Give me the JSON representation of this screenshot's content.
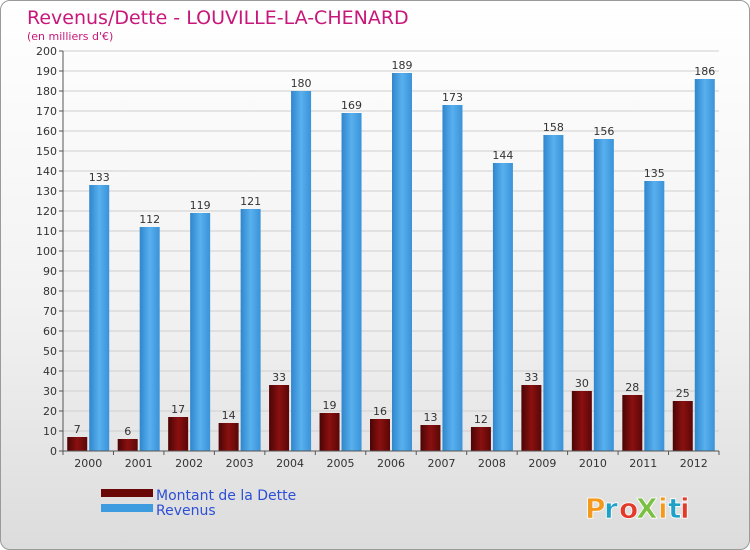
{
  "chart_data": {
    "type": "bar",
    "title": "Revenus/Dette - LOUVILLE-LA-CHENARD",
    "subtitle": "(en milliers d'€)",
    "categories": [
      "2000",
      "2001",
      "2002",
      "2003",
      "2004",
      "2005",
      "2006",
      "2007",
      "2008",
      "2009",
      "2010",
      "2011",
      "2012"
    ],
    "series": [
      {
        "name": "Montant de la Dette",
        "values": [
          7,
          6,
          17,
          14,
          33,
          19,
          16,
          13,
          12,
          33,
          30,
          28,
          25
        ],
        "color": "#7a0d0d"
      },
      {
        "name": "Revenus",
        "values": [
          133,
          112,
          119,
          121,
          180,
          169,
          189,
          173,
          144,
          158,
          156,
          135,
          186
        ],
        "color": "#3d9be0"
      }
    ],
    "ylim": [
      0,
      200
    ],
    "ytick_step": 10,
    "grid": true,
    "legend_position": "bottom-left",
    "data_labels": true
  },
  "logo": {
    "text": "ProXiti",
    "colors": [
      "#f39a1e",
      "#1ea0c8",
      "#e23b2a",
      "#7cc043"
    ]
  }
}
